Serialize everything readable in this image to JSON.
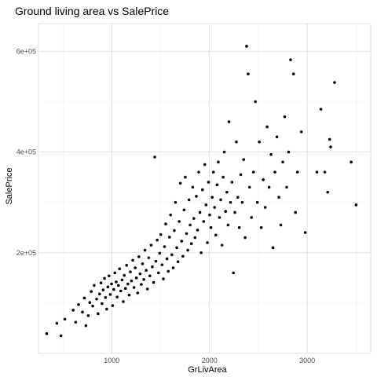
{
  "chart_data": {
    "type": "scatter",
    "title": "Ground living area vs SalePrice",
    "xlabel": "GrLivArea",
    "ylabel": "SalePrice",
    "xlim": [
      250,
      3650
    ],
    "ylim": [
      0,
      655000
    ],
    "x_ticks": [
      {
        "value": 1000,
        "label": "1000"
      },
      {
        "value": 2000,
        "label": "2000"
      },
      {
        "value": 3000,
        "label": "3000"
      }
    ],
    "y_ticks": [
      {
        "value": 200000,
        "label": "2e+05"
      },
      {
        "value": 400000,
        "label": "4e+05"
      },
      {
        "value": 600000,
        "label": "6e+05"
      }
    ],
    "grid": true,
    "point_color": "#000000",
    "series": [
      {
        "points": [
          [
            334,
            39300
          ],
          [
            438,
            60000
          ],
          [
            480,
            35000
          ],
          [
            520,
            68000
          ],
          [
            605,
            86000
          ],
          [
            630,
            62000
          ],
          [
            660,
            97000
          ],
          [
            700,
            82000
          ],
          [
            720,
            110000
          ],
          [
            735,
            55000
          ],
          [
            760,
            75000
          ],
          [
            775,
            101000
          ],
          [
            790,
            123000
          ],
          [
            805,
            94000
          ],
          [
            820,
            135000
          ],
          [
            845,
            108000
          ],
          [
            860,
            79000
          ],
          [
            875,
            118000
          ],
          [
            890,
            140000
          ],
          [
            900,
            99000
          ],
          [
            912,
            126000
          ],
          [
            925,
            149000
          ],
          [
            936,
            111000
          ],
          [
            948,
            88000
          ],
          [
            960,
            132000
          ],
          [
            972,
            154000
          ],
          [
            985,
            117000
          ],
          [
            998,
            138000
          ],
          [
            1008,
            95000
          ],
          [
            1020,
            127000
          ],
          [
            1032,
            160000
          ],
          [
            1045,
            142000
          ],
          [
            1055,
            112000
          ],
          [
            1068,
            135000
          ],
          [
            1080,
            168000
          ],
          [
            1092,
            124000
          ],
          [
            1105,
            146000
          ],
          [
            1118,
            103000
          ],
          [
            1128,
            155000
          ],
          [
            1140,
            129000
          ],
          [
            1152,
            175000
          ],
          [
            1165,
            138000
          ],
          [
            1178,
            116000
          ],
          [
            1190,
            162000
          ],
          [
            1202,
            144000
          ],
          [
            1215,
            185000
          ],
          [
            1228,
            131000
          ],
          [
            1240,
            170000
          ],
          [
            1252,
            150000
          ],
          [
            1265,
            120000
          ],
          [
            1278,
            192000
          ],
          [
            1290,
            158000
          ],
          [
            1302,
            137000
          ],
          [
            1315,
            178000
          ],
          [
            1328,
            147000
          ],
          [
            1340,
            205000
          ],
          [
            1352,
            165000
          ],
          [
            1365,
            128000
          ],
          [
            1378,
            190000
          ],
          [
            1390,
            154000
          ],
          [
            1403,
            215000
          ],
          [
            1415,
            172000
          ],
          [
            1428,
            141000
          ],
          [
            1440,
            390000
          ],
          [
            1452,
            183000
          ],
          [
            1465,
            225000
          ],
          [
            1478,
            160000
          ],
          [
            1490,
            199000
          ],
          [
            1502,
            236000
          ],
          [
            1515,
            176000
          ],
          [
            1528,
            148000
          ],
          [
            1540,
            212000
          ],
          [
            1552,
            257000
          ],
          [
            1565,
            188000
          ],
          [
            1578,
            163000
          ],
          [
            1590,
            231000
          ],
          [
            1602,
            275000
          ],
          [
            1615,
            196000
          ],
          [
            1628,
            170000
          ],
          [
            1640,
            244000
          ],
          [
            1652,
            300000
          ],
          [
            1665,
            210000
          ],
          [
            1678,
            182000
          ],
          [
            1690,
            262000
          ],
          [
            1702,
            338000
          ],
          [
            1715,
            223000
          ],
          [
            1728,
            193000
          ],
          [
            1740,
            285000
          ],
          [
            1752,
            350000
          ],
          [
            1765,
            238000
          ],
          [
            1778,
            205000
          ],
          [
            1790,
            305000
          ],
          [
            1802,
            255000
          ],
          [
            1815,
            218000
          ],
          [
            1828,
            330000
          ],
          [
            1840,
            268000
          ],
          [
            1852,
            230000
          ],
          [
            1865,
            312000
          ],
          [
            1878,
            245000
          ],
          [
            1890,
            360000
          ],
          [
            1902,
            280000
          ],
          [
            1915,
            200000
          ],
          [
            1928,
            325000
          ],
          [
            1940,
            262000
          ],
          [
            1952,
            375000
          ],
          [
            1965,
            295000
          ],
          [
            1978,
            220000
          ],
          [
            1990,
            340000
          ],
          [
            2002,
            275000
          ],
          [
            2015,
            250000
          ],
          [
            2028,
            310000
          ],
          [
            2040,
            360000
          ],
          [
            2052,
            290000
          ],
          [
            2065,
            235000
          ],
          [
            2078,
            335000
          ],
          [
            2090,
            380000
          ],
          [
            2102,
            270000
          ],
          [
            2115,
            305000
          ],
          [
            2128,
            215000
          ],
          [
            2140,
            350000
          ],
          [
            2152,
            400000
          ],
          [
            2165,
            282000
          ],
          [
            2178,
            320000
          ],
          [
            2190,
            255000
          ],
          [
            2200,
            460000
          ],
          [
            2215,
            300000
          ],
          [
            2230,
            340000
          ],
          [
            2245,
            160000
          ],
          [
            2260,
            280000
          ],
          [
            2275,
            420000
          ],
          [
            2290,
            310000
          ],
          [
            2305,
            250000
          ],
          [
            2320,
            355000
          ],
          [
            2335,
            300000
          ],
          [
            2350,
            385000
          ],
          [
            2365,
            230000
          ],
          [
            2380,
            610000
          ],
          [
            2395,
            555000
          ],
          [
            2410,
            330000
          ],
          [
            2430,
            270000
          ],
          [
            2450,
            360000
          ],
          [
            2470,
            500000
          ],
          [
            2490,
            300000
          ],
          [
            2510,
            420000
          ],
          [
            2530,
            250000
          ],
          [
            2550,
            345000
          ],
          [
            2570,
            290000
          ],
          [
            2590,
            450000
          ],
          [
            2610,
            330000
          ],
          [
            2630,
            395000
          ],
          [
            2650,
            210000
          ],
          [
            2670,
            360000
          ],
          [
            2690,
            430000
          ],
          [
            2710,
            310000
          ],
          [
            2730,
            255000
          ],
          [
            2750,
            380000
          ],
          [
            2770,
            470000
          ],
          [
            2790,
            330000
          ],
          [
            2810,
            400000
          ],
          [
            2830,
            583000
          ],
          [
            2860,
            555000
          ],
          [
            2880,
            280000
          ],
          [
            2900,
            360000
          ],
          [
            2940,
            440000
          ],
          [
            2980,
            240000
          ],
          [
            3100,
            360000
          ],
          [
            3140,
            485000
          ],
          [
            3180,
            360000
          ],
          [
            3210,
            320000
          ],
          [
            3230,
            425000
          ],
          [
            3240,
            410000
          ],
          [
            3280,
            538000
          ],
          [
            3450,
            380000
          ],
          [
            3500,
            295000
          ]
        ]
      }
    ]
  }
}
